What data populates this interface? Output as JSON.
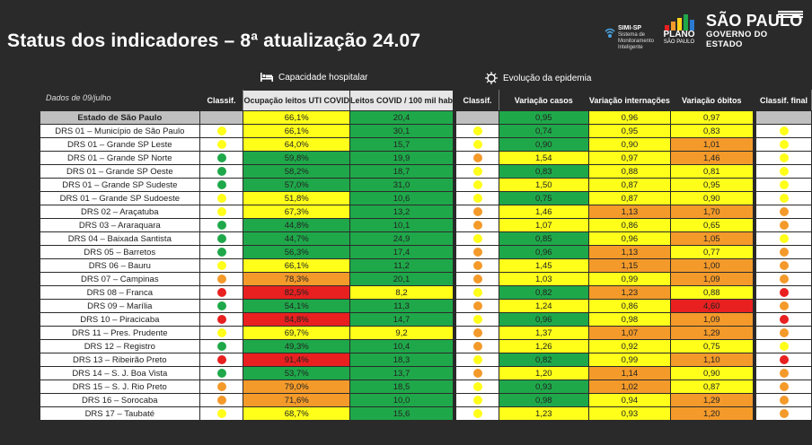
{
  "header": {
    "title": "Status dos indicadores – 8ª atualização 24.07",
    "simi_label": "SIMI-SP",
    "simi_sub": [
      "Sistema de",
      "Monitoramento",
      "Inteligente"
    ],
    "plano_label": "PLANO",
    "plano_sub": "SÃO PAULO",
    "sp_main": "SÃO PAULO",
    "sp_sub": "GOVERNO DO ESTADO"
  },
  "sections": {
    "hospital": "Capacidade hospitalar",
    "epidemic": "Evolução da epidemia"
  },
  "columns": {
    "date": "Dados de 09/julho",
    "classif1": "Classif.",
    "uti": "Ocupação leitos UTI COVID",
    "leitos": "Leitos COVID / 100 mil hab",
    "classif2": "Classif.",
    "casos": "Variação casos",
    "internacoes": "Variação internações",
    "obitos": "Variação óbitos",
    "final": "Classif. final"
  },
  "colors": {
    "green": "#1fa84a",
    "yellow": "#ffff1a",
    "orange": "#f49a2a",
    "red": "#e82020"
  },
  "rows": [
    {
      "name": "Estado de São Paulo",
      "c1": "",
      "uti": "66,1%",
      "uti_c": "yellow",
      "leitos": "20,4",
      "leitos_c": "green",
      "c2": "",
      "casos": "0,95",
      "casos_c": "green",
      "int": "0,96",
      "int_c": "yellow",
      "obi": "0,97",
      "obi_c": "yellow",
      "fin": ""
    },
    {
      "name": "DRS 01 – Município de São Paulo",
      "c1": "yellow",
      "uti": "66,1%",
      "uti_c": "yellow",
      "leitos": "30,1",
      "leitos_c": "green",
      "c2": "yellow",
      "casos": "0,74",
      "casos_c": "green",
      "int": "0,95",
      "int_c": "yellow",
      "obi": "0,83",
      "obi_c": "yellow",
      "fin": "yellow"
    },
    {
      "name": "DRS 01 – Grande SP Leste",
      "c1": "yellow",
      "uti": "64,0%",
      "uti_c": "yellow",
      "leitos": "15,7",
      "leitos_c": "green",
      "c2": "yellow",
      "casos": "0,90",
      "casos_c": "green",
      "int": "0,90",
      "int_c": "yellow",
      "obi": "1,01",
      "obi_c": "orange",
      "fin": "yellow"
    },
    {
      "name": "DRS 01 – Grande SP Norte",
      "c1": "green",
      "uti": "59,8%",
      "uti_c": "green",
      "leitos": "19,9",
      "leitos_c": "green",
      "c2": "orange",
      "casos": "1,54",
      "casos_c": "yellow",
      "int": "0,97",
      "int_c": "yellow",
      "obi": "1,46",
      "obi_c": "orange",
      "fin": "yellow"
    },
    {
      "name": "DRS 01 – Grande SP Oeste",
      "c1": "green",
      "uti": "58,2%",
      "uti_c": "green",
      "leitos": "18,7",
      "leitos_c": "green",
      "c2": "yellow",
      "casos": "0,83",
      "casos_c": "green",
      "int": "0,88",
      "int_c": "yellow",
      "obi": "0,81",
      "obi_c": "yellow",
      "fin": "yellow"
    },
    {
      "name": "DRS 01 – Grande SP Sudeste",
      "c1": "green",
      "uti": "57,0%",
      "uti_c": "green",
      "leitos": "31,0",
      "leitos_c": "green",
      "c2": "yellow",
      "casos": "1,50",
      "casos_c": "yellow",
      "int": "0,87",
      "int_c": "yellow",
      "obi": "0,95",
      "obi_c": "yellow",
      "fin": "yellow"
    },
    {
      "name": "DRS 01 – Grande SP Sudoeste",
      "c1": "yellow",
      "uti": "51,8%",
      "uti_c": "yellow",
      "leitos": "10,6",
      "leitos_c": "green",
      "c2": "yellow",
      "casos": "0,75",
      "casos_c": "green",
      "int": "0,87",
      "int_c": "yellow",
      "obi": "0,90",
      "obi_c": "yellow",
      "fin": "yellow"
    },
    {
      "name": "DRS 02 – Araçatuba",
      "c1": "yellow",
      "uti": "67,3%",
      "uti_c": "yellow",
      "leitos": "13,2",
      "leitos_c": "green",
      "c2": "orange",
      "casos": "1,46",
      "casos_c": "yellow",
      "int": "1,13",
      "int_c": "orange",
      "obi": "1,70",
      "obi_c": "orange",
      "fin": "orange"
    },
    {
      "name": "DRS 03 – Araraquara",
      "c1": "green",
      "uti": "44,8%",
      "uti_c": "green",
      "leitos": "10,1",
      "leitos_c": "green",
      "c2": "orange",
      "casos": "1,07",
      "casos_c": "yellow",
      "int": "0,86",
      "int_c": "yellow",
      "obi": "0,65",
      "obi_c": "yellow",
      "fin": "orange"
    },
    {
      "name": "DRS 04 – Baixada Santista",
      "c1": "green",
      "uti": "44,7%",
      "uti_c": "green",
      "leitos": "24,9",
      "leitos_c": "green",
      "c2": "yellow",
      "casos": "0,85",
      "casos_c": "green",
      "int": "0,96",
      "int_c": "yellow",
      "obi": "1,05",
      "obi_c": "orange",
      "fin": "yellow"
    },
    {
      "name": "DRS 05 – Barretos",
      "c1": "green",
      "uti": "56,3%",
      "uti_c": "green",
      "leitos": "17,4",
      "leitos_c": "green",
      "c2": "orange",
      "casos": "0,96",
      "casos_c": "green",
      "int": "1,13",
      "int_c": "orange",
      "obi": "0,77",
      "obi_c": "yellow",
      "fin": "orange"
    },
    {
      "name": "DRS 06 – Bauru",
      "c1": "yellow",
      "uti": "66,1%",
      "uti_c": "yellow",
      "leitos": "11,2",
      "leitos_c": "green",
      "c2": "orange",
      "casos": "1,45",
      "casos_c": "yellow",
      "int": "1,15",
      "int_c": "orange",
      "obi": "1,00",
      "obi_c": "orange",
      "fin": "orange"
    },
    {
      "name": "DRS 07 – Campinas",
      "c1": "orange",
      "uti": "78,3%",
      "uti_c": "orange",
      "leitos": "20,1",
      "leitos_c": "green",
      "c2": "orange",
      "casos": "1,03",
      "casos_c": "yellow",
      "int": "0,99",
      "int_c": "yellow",
      "obi": "1,09",
      "obi_c": "orange",
      "fin": "orange"
    },
    {
      "name": "DRS 08 – Franca",
      "c1": "red",
      "uti": "82,5%",
      "uti_c": "red",
      "leitos": "8,2",
      "leitos_c": "yellow",
      "c2": "yellow",
      "casos": "0,82",
      "casos_c": "green",
      "int": "1,23",
      "int_c": "orange",
      "obi": "0,88",
      "obi_c": "yellow",
      "fin": "red"
    },
    {
      "name": "DRS 09 – Marília",
      "c1": "green",
      "uti": "54,1%",
      "uti_c": "green",
      "leitos": "11,3",
      "leitos_c": "green",
      "c2": "orange",
      "casos": "1,24",
      "casos_c": "yellow",
      "int": "0,86",
      "int_c": "yellow",
      "obi": "4,60",
      "obi_c": "red",
      "fin": "orange"
    },
    {
      "name": "DRS 10 – Piracicaba",
      "c1": "red",
      "uti": "84,8%",
      "uti_c": "red",
      "leitos": "14,7",
      "leitos_c": "green",
      "c2": "yellow",
      "casos": "0,96",
      "casos_c": "green",
      "int": "0,98",
      "int_c": "yellow",
      "obi": "1,09",
      "obi_c": "orange",
      "fin": "red"
    },
    {
      "name": "DRS 11 – Pres. Prudente",
      "c1": "yellow",
      "uti": "69,7%",
      "uti_c": "yellow",
      "leitos": "9,2",
      "leitos_c": "yellow",
      "c2": "orange",
      "casos": "1,37",
      "casos_c": "yellow",
      "int": "1,07",
      "int_c": "orange",
      "obi": "1,29",
      "obi_c": "orange",
      "fin": "orange"
    },
    {
      "name": "DRS 12 – Registro",
      "c1": "green",
      "uti": "49,3%",
      "uti_c": "green",
      "leitos": "10,4",
      "leitos_c": "green",
      "c2": "orange",
      "casos": "1,26",
      "casos_c": "yellow",
      "int": "0,92",
      "int_c": "yellow",
      "obi": "0,75",
      "obi_c": "yellow",
      "fin": "yellow"
    },
    {
      "name": "DRS 13 – Ribeirão Preto",
      "c1": "red",
      "uti": "91,4%",
      "uti_c": "red",
      "leitos": "18,3",
      "leitos_c": "green",
      "c2": "yellow",
      "casos": "0,82",
      "casos_c": "green",
      "int": "0,99",
      "int_c": "yellow",
      "obi": "1,10",
      "obi_c": "orange",
      "fin": "red"
    },
    {
      "name": "DRS 14 – S. J. Boa Vista",
      "c1": "green",
      "uti": "53,7%",
      "uti_c": "green",
      "leitos": "13,7",
      "leitos_c": "green",
      "c2": "orange",
      "casos": "1,20",
      "casos_c": "yellow",
      "int": "1,14",
      "int_c": "orange",
      "obi": "0,90",
      "obi_c": "yellow",
      "fin": "orange"
    },
    {
      "name": "DRS 15 – S. J. Rio Preto",
      "c1": "orange",
      "uti": "79,0%",
      "uti_c": "orange",
      "leitos": "18,5",
      "leitos_c": "green",
      "c2": "yellow",
      "casos": "0,93",
      "casos_c": "green",
      "int": "1,02",
      "int_c": "orange",
      "obi": "0,87",
      "obi_c": "yellow",
      "fin": "orange"
    },
    {
      "name": "DRS 16 – Sorocaba",
      "c1": "orange",
      "uti": "71,6%",
      "uti_c": "orange",
      "leitos": "10,0",
      "leitos_c": "green",
      "c2": "yellow",
      "casos": "0,98",
      "casos_c": "green",
      "int": "0,94",
      "int_c": "yellow",
      "obi": "1,29",
      "obi_c": "orange",
      "fin": "orange"
    },
    {
      "name": "DRS 17 – Taubaté",
      "c1": "yellow",
      "uti": "68,7%",
      "uti_c": "yellow",
      "leitos": "15,6",
      "leitos_c": "green",
      "c2": "yellow",
      "casos": "1,23",
      "casos_c": "yellow",
      "int": "0,93",
      "int_c": "yellow",
      "obi": "1,20",
      "obi_c": "orange",
      "fin": "orange"
    }
  ]
}
